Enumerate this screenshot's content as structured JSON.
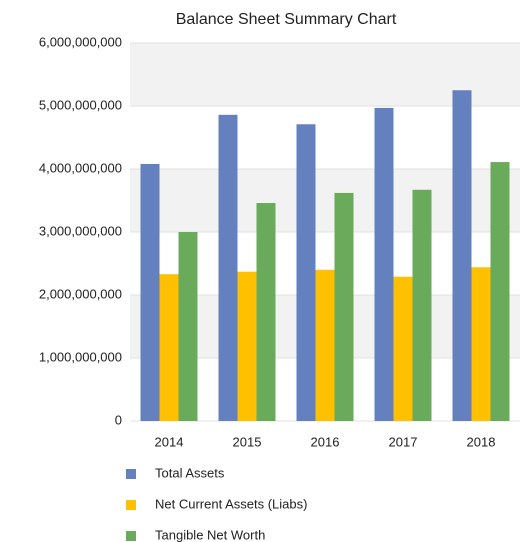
{
  "chart_data": {
    "type": "bar",
    "title": "Balance Sheet Summary Chart",
    "categories": [
      "2014",
      "2015",
      "2016",
      "2017",
      "2018"
    ],
    "series": [
      {
        "name": "Total Assets",
        "color": "#6480bf",
        "values": [
          4080000000,
          4860000000,
          4710000000,
          4970000000,
          5250000000
        ]
      },
      {
        "name": "Net Current Assets (Liabs)",
        "color": "#ffc000",
        "values": [
          2330000000,
          2370000000,
          2400000000,
          2290000000,
          2440000000
        ]
      },
      {
        "name": "Tangible Net Worth",
        "color": "#6aaa5b",
        "values": [
          3000000000,
          3460000000,
          3620000000,
          3670000000,
          4110000000
        ]
      }
    ],
    "ylim": [
      0,
      6000000000
    ],
    "yticks": [
      0,
      {
        "value": 1000000000,
        "label": "1,000,000,000"
      },
      {
        "value": 2000000000,
        "label": "2,000,000,000"
      },
      {
        "value": 3000000000,
        "label": "3,000,000,000"
      },
      {
        "value": 4000000000,
        "label": "4,000,000,000"
      },
      {
        "value": 5000000000,
        "label": "5,000,000,000"
      },
      {
        "value": 6000000000,
        "label": "6,000,000,000"
      }
    ],
    "grid": true,
    "legend": "bottom"
  }
}
